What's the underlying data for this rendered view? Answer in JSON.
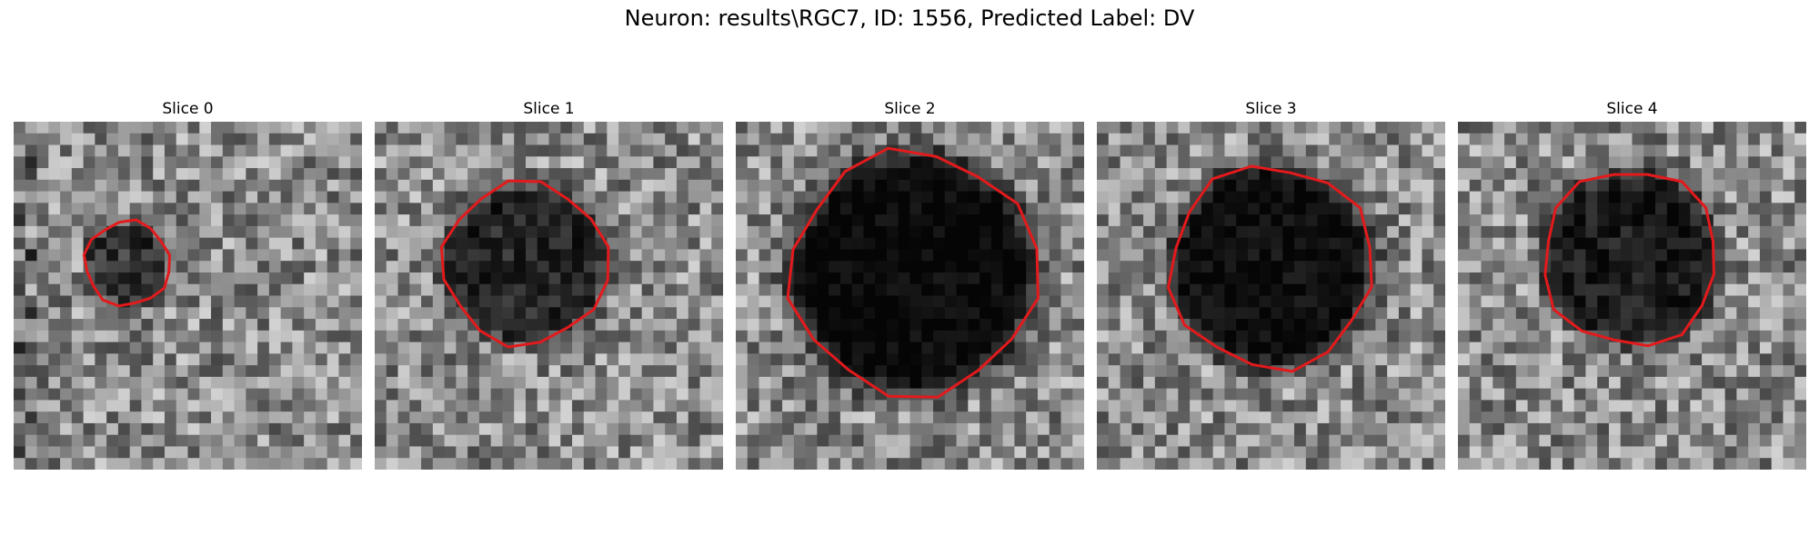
{
  "figure": {
    "title": "Neuron: results\\RGC7, ID: 1556, Predicted Label: DV"
  },
  "style": {
    "contour_color": "#e31a1c",
    "colormap": "grayscale"
  },
  "slices": [
    {
      "title": "Slice 0"
    },
    {
      "title": "Slice 1"
    },
    {
      "title": "Slice 2"
    },
    {
      "title": "Slice 3"
    },
    {
      "title": "Slice 4"
    }
  ]
}
